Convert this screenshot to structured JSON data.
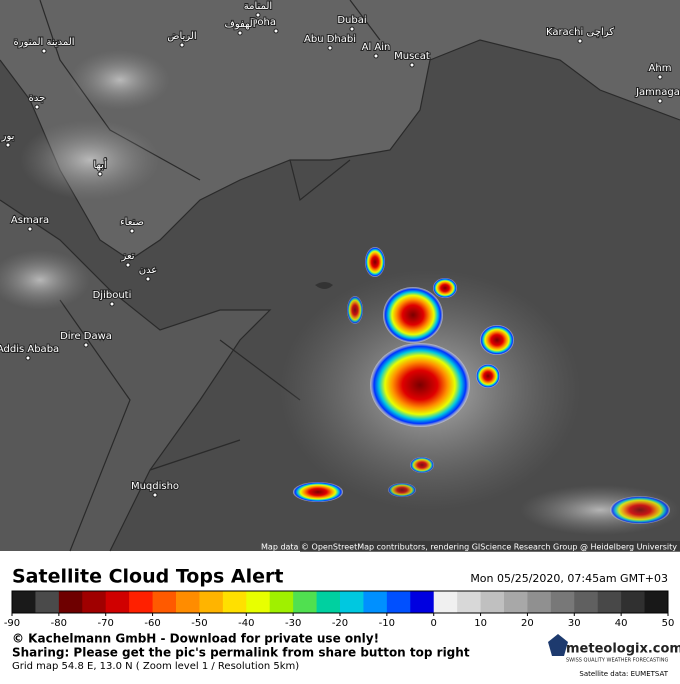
{
  "map": {
    "cities": [
      "Doha",
      "Dubai",
      "Abu Dhabi",
      "Al Ain",
      "Muscat",
      "Karachi كراچی",
      "Ahm",
      "Jamnagar",
      "المنامة",
      "الهفوف",
      "الرياض",
      "المدينة المنورة",
      "جدة",
      "أبها",
      "صنعاء",
      "تعز",
      "عدن",
      "Asmara",
      "Djibouti",
      "Dire Dawa",
      "Addis Ababa",
      "Muqdisho",
      "بور"
    ],
    "attribution": "Map data © OpenStreetMap contributors, rendering GIScience Research Group @ Heidelberg University"
  },
  "footer": {
    "title": "Satellite Cloud Tops Alert",
    "datetime": "Mon 05/25/2020, 07:45am GMT+03",
    "legend": {
      "ticks": [
        -90,
        -80,
        -70,
        -60,
        -50,
        -40,
        -30,
        -20,
        -10,
        0,
        10,
        20,
        30,
        40,
        50
      ],
      "colors": [
        "#1a1a1a",
        "#4a4a4a",
        "#6e0000",
        "#a00000",
        "#d00000",
        "#ff2000",
        "#ff5a00",
        "#ff8c00",
        "#ffb400",
        "#ffe000",
        "#e8ff00",
        "#a0f000",
        "#50e050",
        "#00d0a0",
        "#00c8e0",
        "#0090ff",
        "#0050ff",
        "#0000e0",
        "#f0f0f0",
        "#d8d8d8",
        "#c0c0c0",
        "#a8a8a8",
        "#909090",
        "#787878",
        "#606060",
        "#484848",
        "#303030",
        "#181818"
      ]
    },
    "copyright": "© Kachelmann GmbH - Download for private use only!",
    "sharing": "Sharing: Please get the pic's permalink from share button top right",
    "grid": "Grid map 54.8 E, 13.0 N ( Zoom level 1 / Resolution 5km)",
    "brand": "meteologix.com",
    "tagline": "SWISS QUALITY WEATHER FORECASTING",
    "source": "Satellite data: EUMETSAT"
  }
}
